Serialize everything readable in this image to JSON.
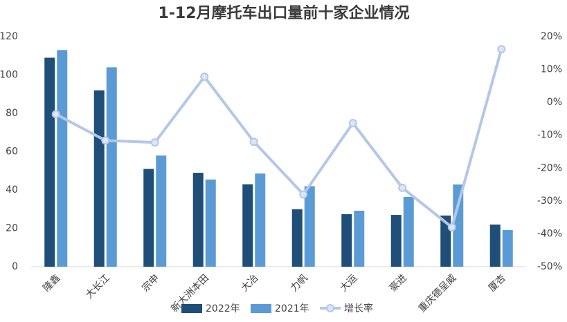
{
  "chart_data": {
    "type": "bar-line",
    "title": "1-12月摩托车出口量前十家企业情况",
    "categories": [
      "隆鑫",
      "大长江",
      "宗申",
      "新大洲本田",
      "大冶",
      "力帆",
      "大运",
      "豪进",
      "重庆德呈威",
      "厦杏"
    ],
    "series": [
      {
        "name": "2022年",
        "color": "#1f4e79",
        "type": "bar",
        "values": [
          109,
          92,
          51,
          49,
          43,
          30,
          27.4,
          27,
          26.7,
          22
        ]
      },
      {
        "name": "2021年",
        "color": "#5b9bd5",
        "type": "bar",
        "values": [
          113,
          104,
          58,
          45.5,
          48.6,
          42,
          29.2,
          36.4,
          42.9,
          19.1
        ]
      },
      {
        "name": "增长率",
        "color": "#b4c7e7",
        "type": "line",
        "axis": "y2",
        "values": [
          -3.6,
          -11.6,
          -12.2,
          7.8,
          -12,
          -28,
          -6.3,
          -26,
          -38,
          16.2
        ]
      }
    ],
    "ylim": [
      0,
      120
    ],
    "yticks": [
      0,
      20,
      40,
      60,
      80,
      100,
      120
    ],
    "y2lim": [
      -50,
      20
    ],
    "y2ticks": [
      {
        "value": -50,
        "label": "-50%"
      },
      {
        "value": -40,
        "label": "-40%"
      },
      {
        "value": -30,
        "label": "-30%"
      },
      {
        "value": -20,
        "label": "-20%"
      },
      {
        "value": -10,
        "label": "-10%"
      },
      {
        "value": 0,
        "label": "0%"
      },
      {
        "value": 10,
        "label": "10%"
      },
      {
        "value": 20,
        "label": "20%"
      }
    ],
    "grid": false,
    "legend": "bottom"
  }
}
